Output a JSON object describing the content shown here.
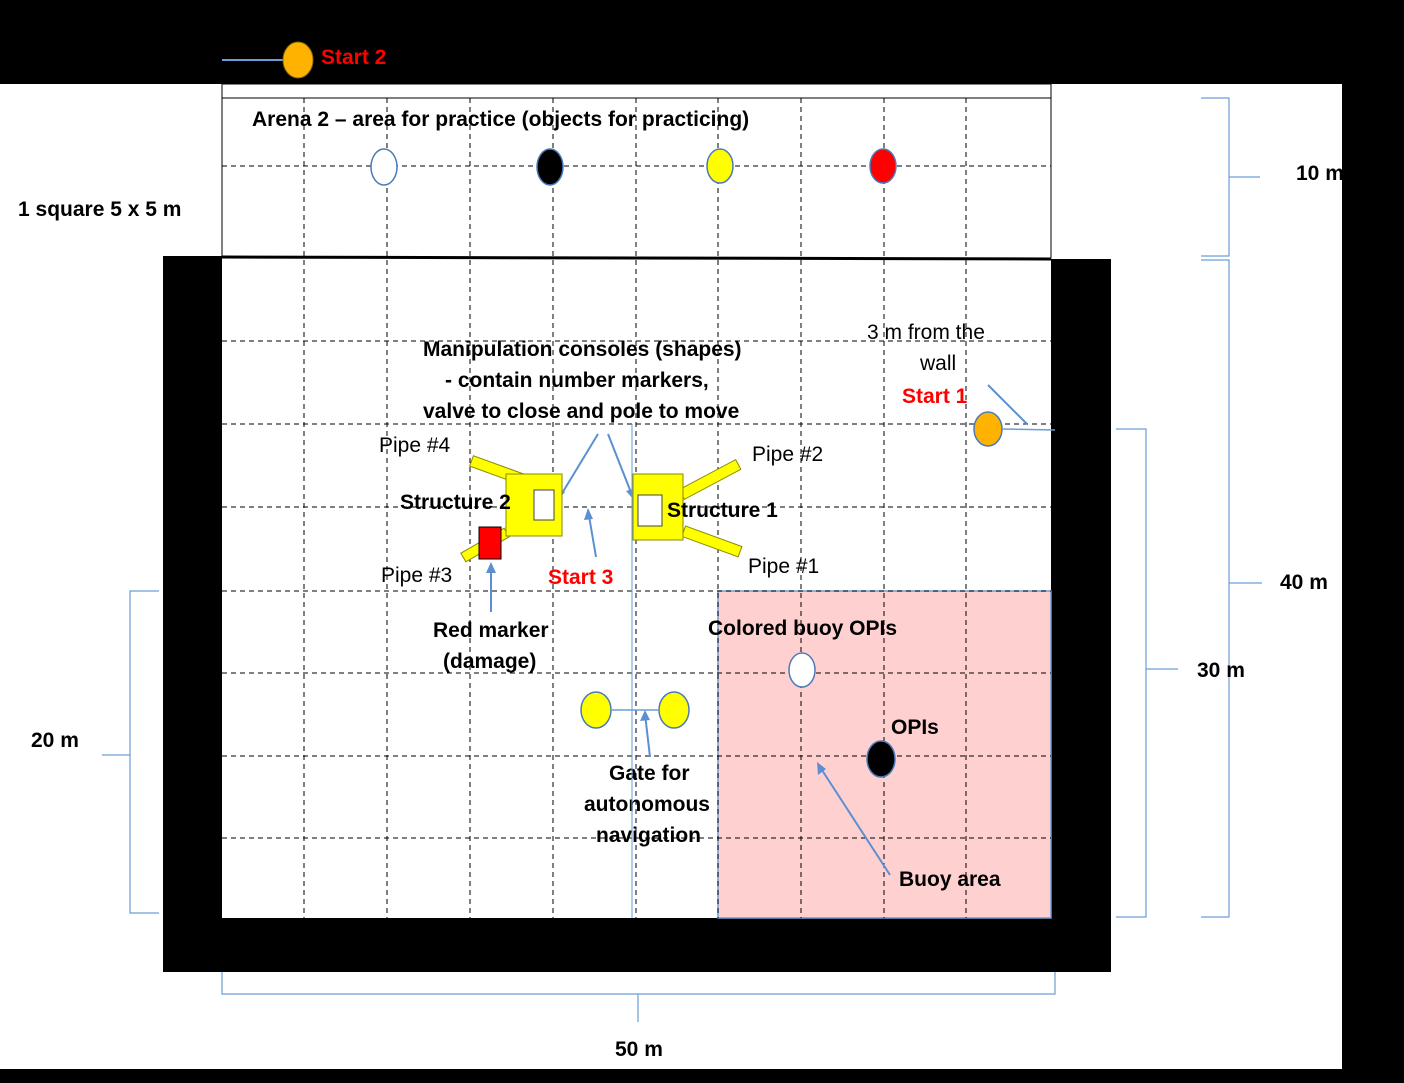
{
  "labels": {
    "start2": "Start 2",
    "arena2": "Arena 2 – area for practice (objects for practicing)",
    "square": "1 square 5 x 5 m",
    "dim10": "10 m",
    "dim40": "40 m",
    "dim30": "30 m",
    "dim20": "20 m",
    "dim50": "50 m",
    "manip1": "Manipulation consoles (shapes)",
    "manip2": "- contain number markers,",
    "manip3": "valve to close and pole to move",
    "wall1": "3 m  from the",
    "wall2": "wall",
    "start1": "Start 1",
    "pipe4": "Pipe #4",
    "pipe2": "Pipe #2",
    "pipe3": "Pipe #3",
    "pipe1": "Pipe #1",
    "structure2": "Structure 2",
    "structure1": "Structure 1",
    "start3": "Start 3",
    "redmarker1": "Red marker",
    "redmarker2": "(damage)",
    "colored_buoy": "Colored buoy OPIs",
    "opis": "OPIs",
    "gate1": "Gate for",
    "gate2": "autonomous",
    "gate3": "navigation",
    "buoy_area": "Buoy area"
  },
  "colors": {
    "yellow": "#ffff00",
    "orange": "#ffb300",
    "red": "#ff0000",
    "pink": "#ffd0d0",
    "arrow": "#5b8fd1"
  }
}
